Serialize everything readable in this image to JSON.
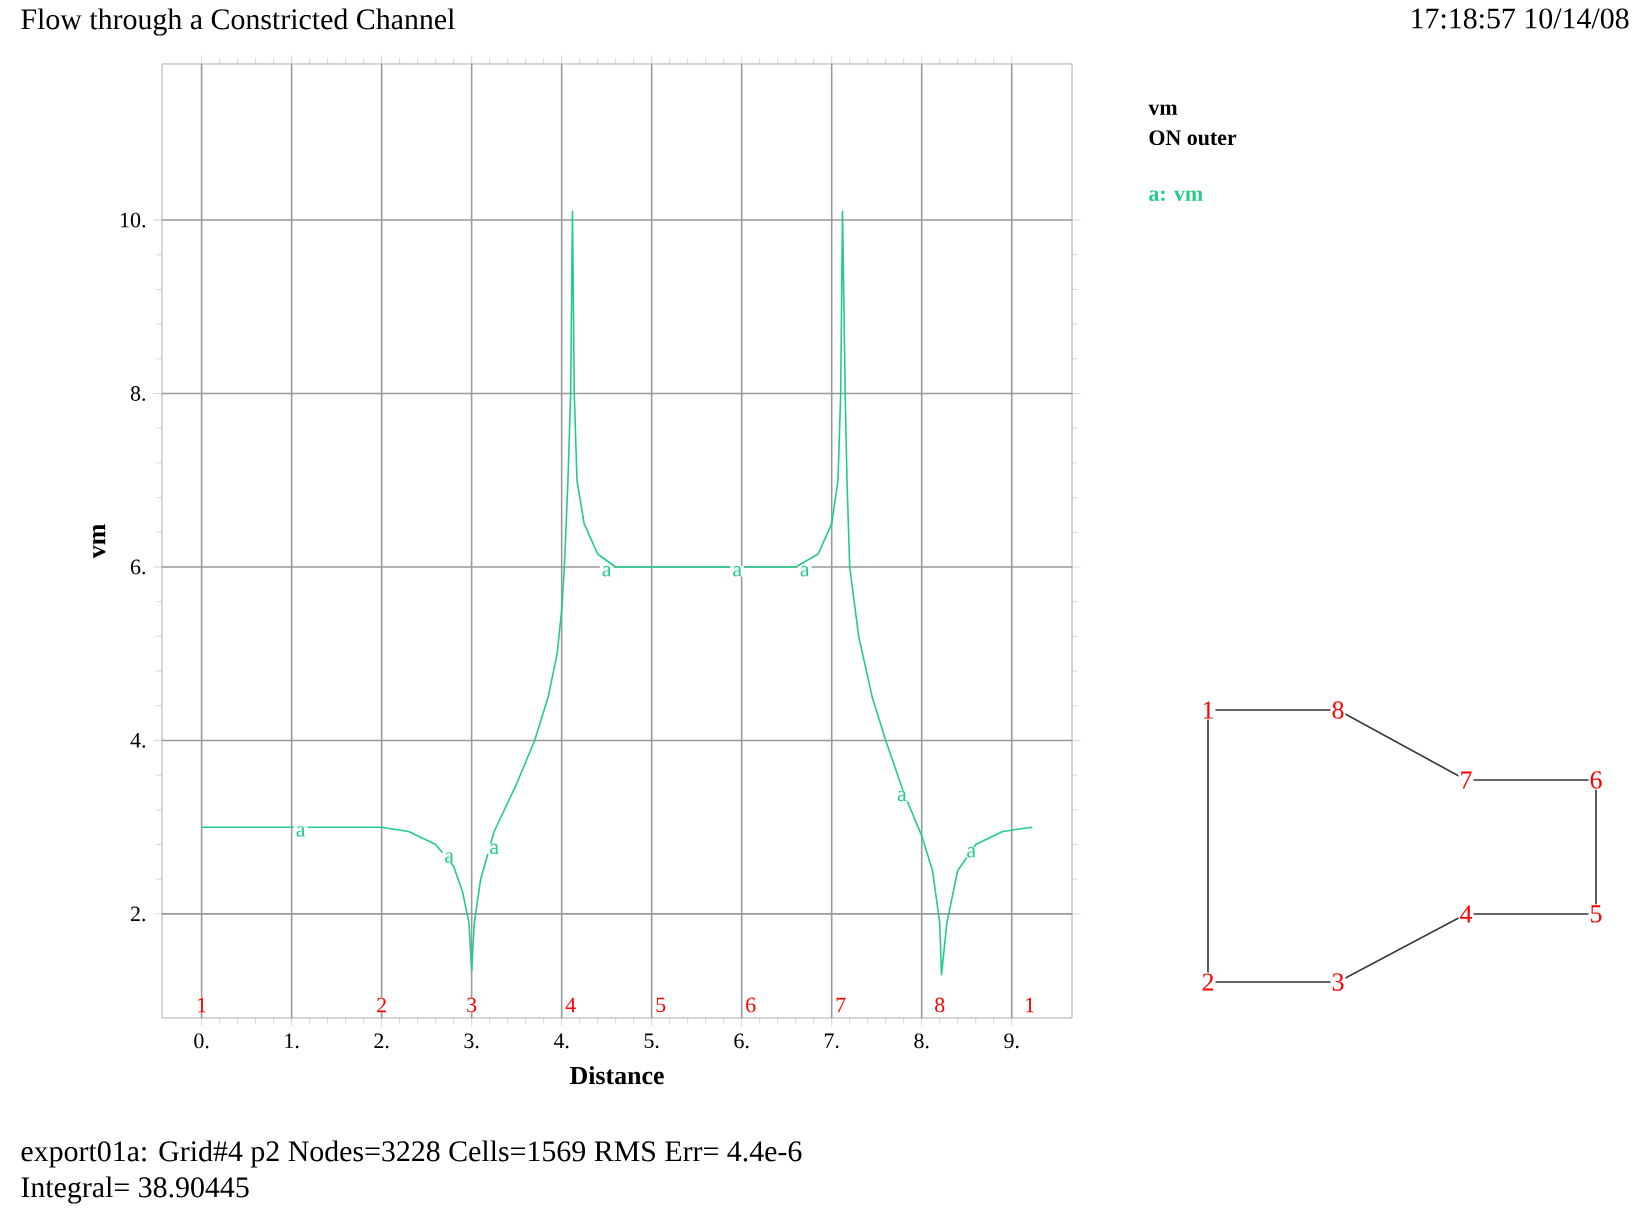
{
  "chart_data": {
    "type": "line",
    "title": "Flow through a Constricted Channel",
    "xlabel": "Distance",
    "ylabel": "vm",
    "xlim": [
      -0.44,
      9.67
    ],
    "ylim": [
      0.8,
      11.8
    ],
    "xticks": [
      {
        "value": 0,
        "label": "0."
      },
      {
        "value": 1,
        "label": "1."
      },
      {
        "value": 2,
        "label": "2."
      },
      {
        "value": 3,
        "label": "3."
      },
      {
        "value": 4,
        "label": "4."
      },
      {
        "value": 5,
        "label": "5."
      },
      {
        "value": 6,
        "label": "6."
      },
      {
        "value": 7,
        "label": "7."
      },
      {
        "value": 8,
        "label": "8."
      },
      {
        "value": 9,
        "label": "9."
      }
    ],
    "yticks": [
      {
        "value": 2,
        "label": "2."
      },
      {
        "value": 4,
        "label": "4."
      },
      {
        "value": 6,
        "label": "6."
      },
      {
        "value": 8,
        "label": "8."
      },
      {
        "value": 10,
        "label": "10."
      }
    ],
    "grid": true,
    "legend": "top right",
    "x": [
      0,
      1,
      2,
      2.3,
      2.6,
      2.8,
      2.9,
      2.97,
      3.0,
      3.03,
      3.1,
      3.25,
      3.5,
      3.7,
      3.85,
      3.95,
      4.0,
      4.03,
      4.07,
      4.1,
      4.12,
      4.14,
      4.17,
      4.25,
      4.4,
      4.6,
      5,
      6,
      6.6,
      6.85,
      7.0,
      7.07,
      7.1,
      7.12,
      7.15,
      7.17,
      7.2,
      7.3,
      7.45,
      7.6,
      7.8,
      8.0,
      8.12,
      8.2,
      8.22,
      8.28,
      8.4,
      8.6,
      8.9,
      9.23
    ],
    "series": [
      {
        "name": "a: vm",
        "color": "#22cc88",
        "values": [
          3.0,
          3.0,
          3.0,
          2.95,
          2.8,
          2.55,
          2.25,
          1.9,
          1.35,
          1.9,
          2.4,
          2.95,
          3.5,
          4.0,
          4.5,
          5.0,
          5.5,
          6.0,
          7.0,
          8.0,
          10.1,
          8.0,
          7.0,
          6.5,
          6.15,
          6.0,
          6.0,
          6.0,
          6.0,
          6.15,
          6.5,
          7.0,
          8.0,
          10.1,
          8.0,
          7.0,
          6.0,
          5.2,
          4.5,
          4.0,
          3.4,
          2.9,
          2.5,
          1.9,
          1.3,
          1.9,
          2.5,
          2.8,
          2.95,
          3.0
        ]
      }
    ],
    "annotations": [
      "17:18:57 10/14/08",
      "vm",
      "ON outer",
      "export01a:  Grid#4  p2  Nodes=3228 Cells=1569 RMS Err= 4.4e-6",
      "Integral=  38.90445",
      "1",
      "2",
      "3",
      "4",
      "5",
      "6",
      "7",
      "8",
      {
        "text": "1",
        "x": 0,
        "y": 0.95
      },
      {
        "text": "2",
        "x": 2,
        "y": 0.95
      },
      {
        "text": "3",
        "x": 3,
        "y": 0.95
      },
      {
        "text": "4",
        "x": 4.1,
        "y": 0.95
      },
      {
        "text": "5",
        "x": 5.1,
        "y": 0.95
      },
      {
        "text": "6",
        "x": 6.1,
        "y": 0.95
      },
      {
        "text": "7",
        "x": 7.1,
        "y": 0.95
      },
      {
        "text": "8",
        "x": 8.2,
        "y": 0.95
      },
      {
        "text": "1",
        "x": 9.2,
        "y": 0.95
      },
      {
        "text": "a",
        "x": 1.1,
        "y": 2.95
      },
      {
        "text": "a",
        "x": 2.75,
        "y": 2.65
      },
      {
        "text": "a",
        "x": 3.25,
        "y": 2.75
      },
      {
        "text": "a",
        "x": 4.5,
        "y": 5.95
      },
      {
        "text": "a",
        "x": 5.95,
        "y": 5.95
      },
      {
        "text": "a",
        "x": 6.7,
        "y": 5.95
      },
      {
        "text": "a",
        "x": 7.78,
        "y": 3.36
      },
      {
        "text": "a",
        "x": 8.55,
        "y": 2.71
      }
    ]
  }
}
